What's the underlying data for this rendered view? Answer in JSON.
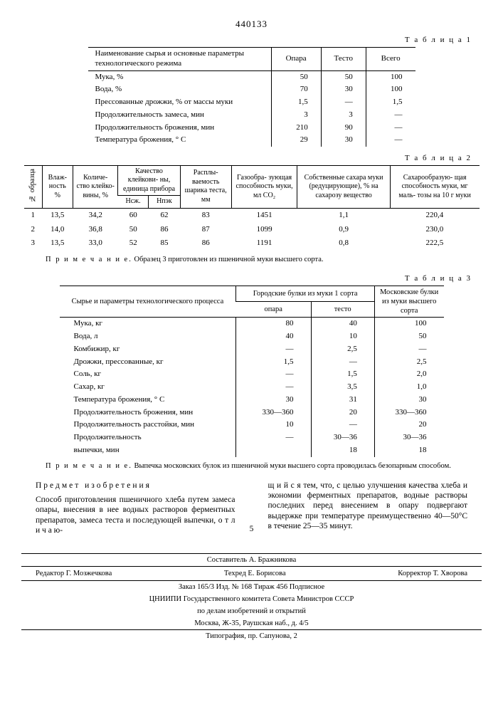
{
  "doc_number": "440133",
  "table1": {
    "label": "Т а б л и ц а 1",
    "head": [
      "Наименование сырья и основные параметры технологического режима",
      "Опара",
      "Тесто",
      "Всего"
    ],
    "rows": [
      {
        "l": "Мука, %",
        "v": [
          "50",
          "50",
          "100"
        ]
      },
      {
        "l": "Вода, %",
        "v": [
          "70",
          "30",
          "100"
        ]
      },
      {
        "l": "Прессованные дрожжи, % от массы муки",
        "v": [
          "1,5",
          "—",
          "1,5"
        ]
      },
      {
        "l": "Продолжительность замеса, мин",
        "v": [
          "3",
          "3",
          "—"
        ]
      },
      {
        "l": "Продолжительность брожения, мин",
        "v": [
          "210",
          "90",
          "—"
        ]
      },
      {
        "l": "Температура брожения, ° С",
        "v": [
          "29",
          "30",
          "—"
        ]
      }
    ]
  },
  "table2": {
    "label": "Т а б л и ц а 2",
    "head_rot": "№ образца",
    "head": [
      "Влаж-\nность\n%",
      "Количе-\nство\nклейко-\nвины, %",
      "Качество клейкови-\nны, единица прибора",
      "Нсж.",
      "Нпэк",
      "Расплы-\nваемость\nшарика\nтеста, мм",
      "Газообра-\nзующая\nспособность\nмуки, мл\nCO₂",
      "Собственные\nсахара муки\n(редуцирующие),\n% на сахарозу\nвещество",
      "Сахарообразую-\nщая способность\nмуки, мг маль-\nтозы на 10 г\nмуки"
    ],
    "rows": [
      [
        "1",
        "13,5",
        "34,2",
        "60",
        "62",
        "83",
        "1451",
        "1,1",
        "220,4"
      ],
      [
        "2",
        "14,0",
        "36,8",
        "50",
        "86",
        "87",
        "1099",
        "0,9",
        "230,0"
      ],
      [
        "3",
        "13,5",
        "33,0",
        "52",
        "85",
        "86",
        "1191",
        "0,8",
        "222,5"
      ]
    ],
    "note_label": "П р и м е ч а н и е.",
    "note": "Образец 3 приготовлен из пшеничной муки высшего сорта."
  },
  "table3": {
    "label": "Т а б л и ц а 3",
    "head_top": [
      "Сырье и параметры технологического процесса",
      "Городские булки из муки 1 сорта",
      "Московские булки из муки высшего сорта"
    ],
    "head_sub": [
      "опара",
      "тесто"
    ],
    "rows": [
      {
        "l": "Мука, кг",
        "v": [
          "80",
          "40",
          "100"
        ]
      },
      {
        "l": "Вода, л",
        "v": [
          "40",
          "10",
          "50"
        ]
      },
      {
        "l": "Комбижир, кг",
        "v": [
          "—",
          "2,5",
          "—"
        ]
      },
      {
        "l": "Дрожжи, прессованные, кг",
        "v": [
          "1,5",
          "—",
          "2,5"
        ]
      },
      {
        "l": "Соль, кг",
        "v": [
          "—",
          "1,5",
          "2,0"
        ]
      },
      {
        "l": "Сахар, кг",
        "v": [
          "—",
          "3,5",
          "1,0"
        ]
      },
      {
        "l": "Температура брожения, ° С",
        "v": [
          "30",
          "31",
          "30"
        ]
      },
      {
        "l": "Продолжительность брожения, мин",
        "v": [
          "330—360",
          "20",
          "330—360"
        ]
      },
      {
        "l": "Продолжительность расстойки, мин",
        "v": [
          "10",
          "—",
          "20"
        ]
      },
      {
        "l": "Продолжительность",
        "v": [
          "—",
          "30—36",
          "30—36"
        ]
      },
      {
        "l": "выпечки, мин",
        "v": [
          "",
          "18",
          "18"
        ]
      }
    ],
    "note_label": "П р и м е ч а н и е.",
    "note": "Выпечка московских булок из пшеничной муки высшего сорта проводилась безопарным способом."
  },
  "subject": {
    "title": "Предмет изобретения",
    "left": "Способ приготовления пшеничного хлеба путем замеса опары, внесения в нее водных растворов ферментных препаратов, замеса теста и последующей выпечки, о т л и ч а ю-",
    "right": "щ и й с я тем, что, с целью улучшения качества хлеба и экономии ферментных препаратов, водные растворы последних перед внесением в опару подвергают выдержке при температуре преимущественно 40—50°С в течение 25—35 минут.",
    "num5": "5"
  },
  "footer": {
    "author": "Составитель А. Бражникова",
    "editor": "Редактор Г. Мозжечкова",
    "tech": "Техред Е. Борисова",
    "corr": "Корректор Т. Хворова",
    "order": "Заказ 165/3          Изд. № 168          Тираж 456          Подписное",
    "org1": "ЦНИИПИ Государственного комитета Совета Министров СССР",
    "org2": "по делам изобретений и открытий",
    "addr": "Москва, Ж-35, Раушская наб., д. 4/5",
    "print": "Типография, пр. Сапунова, 2"
  }
}
